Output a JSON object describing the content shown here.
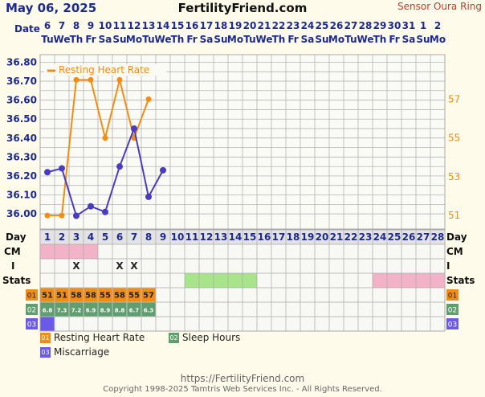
{
  "header": {
    "date": "May 06, 2025",
    "site": "FertilityFriend.com",
    "sensor": "Sensor Oura Ring"
  },
  "footer": {
    "url": "https://FertilityFriend.com",
    "copyright": "Copyright 1998-2025 Tamtris Web Services Inc. - All Rights Reserved."
  },
  "chart_data": {
    "type": "line",
    "row_labels": {
      "date": "Date",
      "day": "Day",
      "cm": "CM",
      "i": "I",
      "stats": "Stats"
    },
    "dates": [
      "6",
      "7",
      "8",
      "9",
      "10",
      "11",
      "12",
      "13",
      "14",
      "15",
      "16",
      "17",
      "18",
      "19",
      "20",
      "21",
      "22",
      "23",
      "24",
      "25",
      "26",
      "27",
      "28",
      "29",
      "30",
      "31",
      "1",
      "2"
    ],
    "weekdays": [
      "Tu",
      "We",
      "Th",
      "Fr",
      "Sa",
      "Su",
      "Mo",
      "Tu",
      "We",
      "Th",
      "Fr",
      "Sa",
      "Su",
      "Mo",
      "Tu",
      "We",
      "Th",
      "Fr",
      "Sa",
      "Su",
      "Mo",
      "Tu",
      "We",
      "Th",
      "Fr",
      "Sa",
      "Su",
      "Mo"
    ],
    "cycle_days": [
      "1",
      "2",
      "3",
      "4",
      "5",
      "6",
      "7",
      "8",
      "9",
      "10",
      "11",
      "12",
      "13",
      "14",
      "15",
      "16",
      "17",
      "18",
      "19",
      "20",
      "21",
      "22",
      "23",
      "24",
      "25",
      "26",
      "27",
      "28"
    ],
    "temp_axis": {
      "min": 35.92,
      "max": 36.84,
      "ticks": [
        "36.00",
        "36.10",
        "36.20",
        "36.30",
        "36.40",
        "36.50",
        "36.60",
        "36.70",
        "36.80"
      ]
    },
    "rhr_axis": {
      "min": 50.3,
      "max": 59.3,
      "ticks": [
        "51",
        "53",
        "55",
        "57"
      ]
    },
    "temperature": {
      "color": "#4a3bc4",
      "values": [
        36.22,
        36.24,
        35.99,
        36.04,
        36.01,
        36.25,
        36.45,
        36.09,
        36.23
      ]
    },
    "resting_heart_rate": {
      "name": "Resting Heart Rate",
      "color": "#f28c12",
      "values": [
        51,
        51,
        58,
        58,
        55,
        58,
        55,
        57
      ]
    },
    "cm": {
      "color": "#f2b3c8",
      "start": 1,
      "end": 4
    },
    "intercourse": {
      "marks": [
        3,
        6,
        7
      ],
      "symbol": "X"
    },
    "stats_bars": [
      {
        "start": 11,
        "end": 15,
        "color": "#a8e58a"
      },
      {
        "start": 24,
        "end": 28,
        "color": "#f2b3c8"
      }
    ],
    "data_rows": [
      {
        "code": "01",
        "color": "#f28c12",
        "text_color": "#222",
        "values": [
          "51",
          "51",
          "58",
          "58",
          "55",
          "58",
          "55",
          "57"
        ]
      },
      {
        "code": "02",
        "color": "#5f9e6e",
        "text_color": "#fff",
        "values": [
          "6.8",
          "7.3",
          "7.2",
          "6.9",
          "8.9",
          "8.8",
          "6.7",
          "6.3"
        ]
      },
      {
        "code": "03",
        "color": "#6a5ae6",
        "text_color": "#fff",
        "values": [
          ""
        ]
      }
    ],
    "legend": [
      {
        "code": "01",
        "label": "Resting Heart Rate",
        "color": "#f28c12"
      },
      {
        "code": "02",
        "label": "Sleep Hours",
        "color": "#5f9e6e"
      },
      {
        "code": "03",
        "label": "Miscarriage",
        "color": "#6a5ae6"
      }
    ]
  }
}
